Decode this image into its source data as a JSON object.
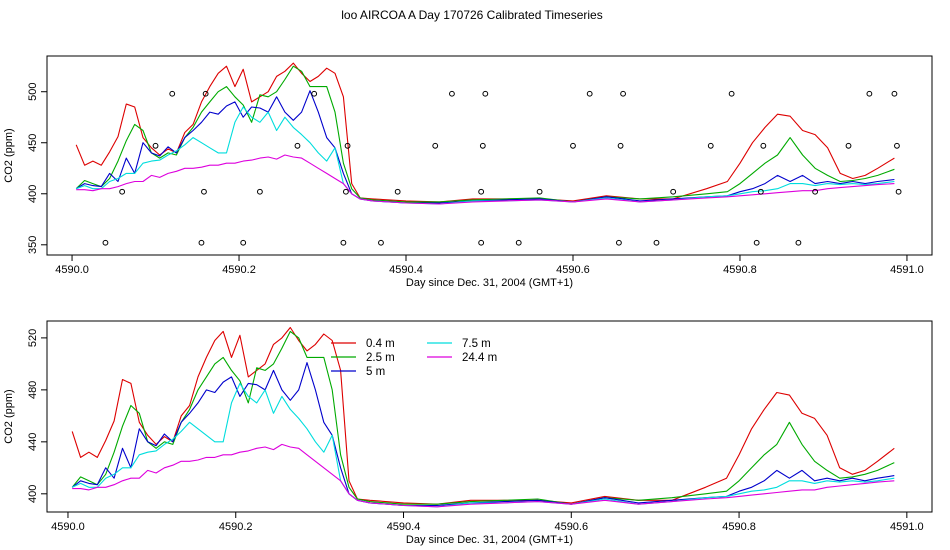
{
  "figure": {
    "title": "loo AIRCOA A  Day 170726  Calibrated Timeseries"
  },
  "chart_data": [
    {
      "type": "line",
      "panel": "top",
      "xlabel": "Day since Dec. 31, 2004 (GMT+1)",
      "ylabel": "CO2 (ppm)",
      "xlim": [
        4589.97,
        4591.03
      ],
      "ylim": [
        340,
        535
      ],
      "xticks": [
        4590.0,
        4590.2,
        4590.4,
        4590.6,
        4590.8,
        4591.0
      ],
      "xtick_labels": [
        "4590.0",
        "4590.2",
        "4590.4",
        "4590.6",
        "4590.8",
        "4591.0"
      ],
      "yticks": [
        350,
        400,
        450,
        500
      ],
      "ytick_labels": [
        "350",
        "400",
        "450",
        "500"
      ],
      "grid": false,
      "legend": null,
      "x": [
        4590.005,
        4590.015,
        4590.025,
        4590.035,
        4590.045,
        4590.055,
        4590.065,
        4590.075,
        4590.085,
        4590.095,
        4590.105,
        4590.115,
        4590.125,
        4590.135,
        4590.145,
        4590.155,
        4590.165,
        4590.175,
        4590.185,
        4590.195,
        4590.205,
        4590.215,
        4590.225,
        4590.235,
        4590.245,
        4590.255,
        4590.265,
        4590.275,
        4590.285,
        4590.295,
        4590.305,
        4590.315,
        4590.325,
        4590.335,
        4590.345,
        4590.36,
        4590.4,
        4590.44,
        4590.48,
        4590.52,
        4590.56,
        4590.6,
        4590.64,
        4590.68,
        4590.72,
        4590.76,
        4590.785,
        4590.8,
        4590.815,
        4590.83,
        4590.845,
        4590.86,
        4590.875,
        4590.89,
        4590.905,
        4590.92,
        4590.935,
        4590.95,
        4590.965,
        4590.985
      ],
      "series": [
        {
          "name": "0.4 m",
          "color": "#dd0000",
          "values": [
            448,
            428,
            432,
            428,
            441,
            456,
            488,
            485,
            455,
            445,
            438,
            444,
            440,
            460,
            468,
            490,
            505,
            518,
            525,
            505,
            522,
            490,
            495,
            500,
            515,
            520,
            528,
            518,
            510,
            515,
            523,
            518,
            495,
            410,
            396,
            395,
            393,
            392,
            395,
            395,
            395,
            393,
            398,
            395,
            395,
            405,
            412,
            430,
            450,
            465,
            478,
            476,
            462,
            458,
            445,
            420,
            415,
            418,
            425,
            435
          ]
        },
        {
          "name": "2.5 m",
          "color": "#00aa00",
          "values": [
            405,
            413,
            410,
            407,
            415,
            432,
            452,
            468,
            462,
            440,
            435,
            440,
            438,
            455,
            465,
            480,
            490,
            500,
            505,
            495,
            487,
            470,
            497,
            495,
            500,
            512,
            525,
            520,
            505,
            505,
            505,
            480,
            430,
            405,
            396,
            394,
            392,
            392,
            394,
            395,
            396,
            392,
            397,
            395,
            397,
            400,
            402,
            410,
            420,
            430,
            438,
            455,
            438,
            425,
            418,
            412,
            413,
            415,
            418,
            424
          ]
        },
        {
          "name": "5 m",
          "color": "#0000cc",
          "values": [
            405,
            410,
            408,
            407,
            420,
            412,
            435,
            420,
            450,
            440,
            437,
            446,
            440,
            455,
            462,
            470,
            480,
            478,
            486,
            490,
            475,
            485,
            484,
            480,
            495,
            480,
            472,
            480,
            501,
            480,
            455,
            445,
            420,
            400,
            395,
            393,
            391,
            391,
            393,
            394,
            395,
            392,
            397,
            393,
            395,
            397,
            398,
            402,
            405,
            410,
            418,
            412,
            418,
            410,
            412,
            410,
            412,
            410,
            412,
            414
          ]
        },
        {
          "name": "7.5 m",
          "color": "#00dddd",
          "values": [
            405,
            408,
            405,
            405,
            412,
            415,
            420,
            420,
            430,
            432,
            433,
            438,
            442,
            448,
            455,
            450,
            445,
            440,
            440,
            470,
            485,
            475,
            470,
            480,
            462,
            475,
            465,
            458,
            450,
            440,
            432,
            445,
            410,
            400,
            395,
            393,
            391,
            390,
            393,
            393,
            394,
            392,
            396,
            392,
            394,
            397,
            398,
            400,
            402,
            403,
            405,
            410,
            410,
            408,
            410,
            409,
            410,
            409,
            410,
            412
          ]
        },
        {
          "name": "24.4 m",
          "color": "#dd00dd",
          "values": [
            404,
            404,
            403,
            405,
            405,
            407,
            410,
            412,
            412,
            418,
            416,
            420,
            422,
            425,
            425,
            426,
            428,
            428,
            430,
            430,
            432,
            433,
            435,
            436,
            434,
            438,
            436,
            435,
            430,
            425,
            420,
            415,
            410,
            400,
            395,
            393,
            391,
            390,
            392,
            393,
            394,
            392,
            395,
            392,
            394,
            396,
            397,
            398,
            399,
            400,
            401,
            402,
            403,
            403,
            405,
            406,
            407,
            408,
            409,
            410
          ]
        }
      ],
      "markers": {
        "shape": "circle",
        "x": [
          4590.04,
          4590.06,
          4590.1,
          4590.12,
          4590.155,
          4590.158,
          4590.16,
          4590.205,
          4590.225,
          4590.27,
          4590.29,
          4590.325,
          4590.328,
          4590.33,
          4590.37,
          4590.39,
          4590.435,
          4590.455,
          4590.49,
          4590.49,
          4590.492,
          4590.495,
          4590.535,
          4590.56,
          4590.6,
          4590.62,
          4590.655,
          4590.657,
          4590.66,
          4590.7,
          4590.72,
          4590.765,
          4590.79,
          4590.82,
          4590.825,
          4590.828,
          4590.87,
          4590.89,
          4590.93,
          4590.955,
          4590.985,
          4590.988,
          4590.99
        ],
        "y": [
          352,
          402,
          447,
          498,
          352,
          402,
          498,
          352,
          402,
          447,
          498,
          352,
          402,
          447,
          352,
          402,
          447,
          498,
          352,
          402,
          447,
          498,
          352,
          402,
          447,
          498,
          352,
          447,
          498,
          352,
          402,
          447,
          498,
          352,
          402,
          447,
          352,
          402,
          447,
          498,
          498,
          447,
          402
        ]
      }
    },
    {
      "type": "line",
      "panel": "bottom",
      "xlabel": "Day since Dec. 31, 2004 (GMT+1)",
      "ylabel": "CO2 (ppm)",
      "xlim": [
        4589.975,
        4591.03
      ],
      "ylim": [
        386,
        533
      ],
      "xticks": [
        4590.0,
        4590.2,
        4590.4,
        4590.6,
        4590.8,
        4591.0
      ],
      "xtick_labels": [
        "4590.0",
        "4590.2",
        "4590.4",
        "4590.6",
        "4590.8",
        "4591.0"
      ],
      "yticks": [
        400,
        440,
        480,
        520
      ],
      "ytick_labels": [
        "400",
        "440",
        "480",
        "520"
      ],
      "grid": false,
      "legend": {
        "placement": "top-center",
        "entries": [
          {
            "label": "0.4 m",
            "color": "#dd0000"
          },
          {
            "label": "2.5 m",
            "color": "#00aa00"
          },
          {
            "label": "5 m",
            "color": "#0000cc"
          },
          {
            "label": "7.5 m",
            "color": "#00dddd"
          },
          {
            "label": "24.4 m",
            "color": "#dd00dd"
          }
        ]
      },
      "x": [
        4590.005,
        4590.015,
        4590.025,
        4590.035,
        4590.045,
        4590.055,
        4590.065,
        4590.075,
        4590.085,
        4590.095,
        4590.105,
        4590.115,
        4590.125,
        4590.135,
        4590.145,
        4590.155,
        4590.165,
        4590.175,
        4590.185,
        4590.195,
        4590.205,
        4590.215,
        4590.225,
        4590.235,
        4590.245,
        4590.255,
        4590.265,
        4590.275,
        4590.285,
        4590.295,
        4590.305,
        4590.315,
        4590.325,
        4590.335,
        4590.345,
        4590.36,
        4590.4,
        4590.44,
        4590.48,
        4590.52,
        4590.56,
        4590.6,
        4590.64,
        4590.68,
        4590.72,
        4590.76,
        4590.785,
        4590.8,
        4590.815,
        4590.83,
        4590.845,
        4590.86,
        4590.875,
        4590.89,
        4590.905,
        4590.92,
        4590.935,
        4590.95,
        4590.965,
        4590.985
      ],
      "series": [
        {
          "name": "0.4 m",
          "color": "#dd0000",
          "values": [
            448,
            428,
            432,
            428,
            441,
            456,
            488,
            485,
            455,
            445,
            438,
            444,
            440,
            460,
            468,
            490,
            505,
            518,
            525,
            505,
            522,
            490,
            495,
            500,
            515,
            520,
            528,
            518,
            510,
            515,
            523,
            518,
            495,
            410,
            396,
            395,
            393,
            392,
            395,
            395,
            395,
            393,
            398,
            395,
            395,
            405,
            412,
            430,
            450,
            465,
            478,
            476,
            462,
            458,
            445,
            420,
            415,
            418,
            425,
            435
          ]
        },
        {
          "name": "2.5 m",
          "color": "#00aa00",
          "values": [
            405,
            413,
            410,
            407,
            415,
            432,
            452,
            468,
            462,
            440,
            435,
            440,
            438,
            455,
            465,
            480,
            490,
            500,
            505,
            495,
            487,
            470,
            497,
            495,
            500,
            512,
            525,
            520,
            505,
            505,
            505,
            480,
            430,
            405,
            396,
            394,
            392,
            392,
            394,
            395,
            396,
            392,
            397,
            395,
            397,
            400,
            402,
            410,
            420,
            430,
            438,
            455,
            438,
            425,
            418,
            412,
            413,
            415,
            418,
            424
          ]
        },
        {
          "name": "5 m",
          "color": "#0000cc",
          "values": [
            405,
            410,
            408,
            407,
            420,
            412,
            435,
            420,
            450,
            440,
            437,
            446,
            440,
            455,
            462,
            470,
            480,
            478,
            486,
            490,
            475,
            485,
            484,
            480,
            495,
            480,
            472,
            480,
            501,
            480,
            455,
            445,
            420,
            400,
            395,
            393,
            391,
            391,
            393,
            394,
            395,
            392,
            397,
            393,
            395,
            397,
            398,
            402,
            405,
            410,
            418,
            412,
            418,
            410,
            412,
            410,
            412,
            410,
            412,
            414
          ]
        },
        {
          "name": "7.5 m",
          "color": "#00dddd",
          "values": [
            405,
            408,
            405,
            405,
            412,
            415,
            420,
            420,
            430,
            432,
            433,
            438,
            442,
            448,
            455,
            450,
            445,
            440,
            440,
            470,
            485,
            475,
            470,
            480,
            462,
            475,
            465,
            458,
            450,
            440,
            432,
            445,
            410,
            400,
            395,
            393,
            391,
            390,
            393,
            393,
            394,
            392,
            396,
            392,
            394,
            397,
            398,
            400,
            402,
            403,
            405,
            410,
            410,
            408,
            410,
            409,
            410,
            409,
            410,
            412
          ]
        },
        {
          "name": "24.4 m",
          "color": "#dd00dd",
          "values": [
            404,
            404,
            403,
            405,
            405,
            407,
            410,
            412,
            412,
            418,
            416,
            420,
            422,
            425,
            425,
            426,
            428,
            428,
            430,
            430,
            432,
            433,
            435,
            436,
            434,
            438,
            436,
            435,
            430,
            425,
            420,
            415,
            410,
            400,
            395,
            393,
            391,
            390,
            392,
            393,
            394,
            392,
            395,
            392,
            394,
            396,
            397,
            398,
            399,
            400,
            401,
            402,
            403,
            403,
            405,
            406,
            407,
            408,
            409,
            410
          ]
        }
      ]
    }
  ]
}
